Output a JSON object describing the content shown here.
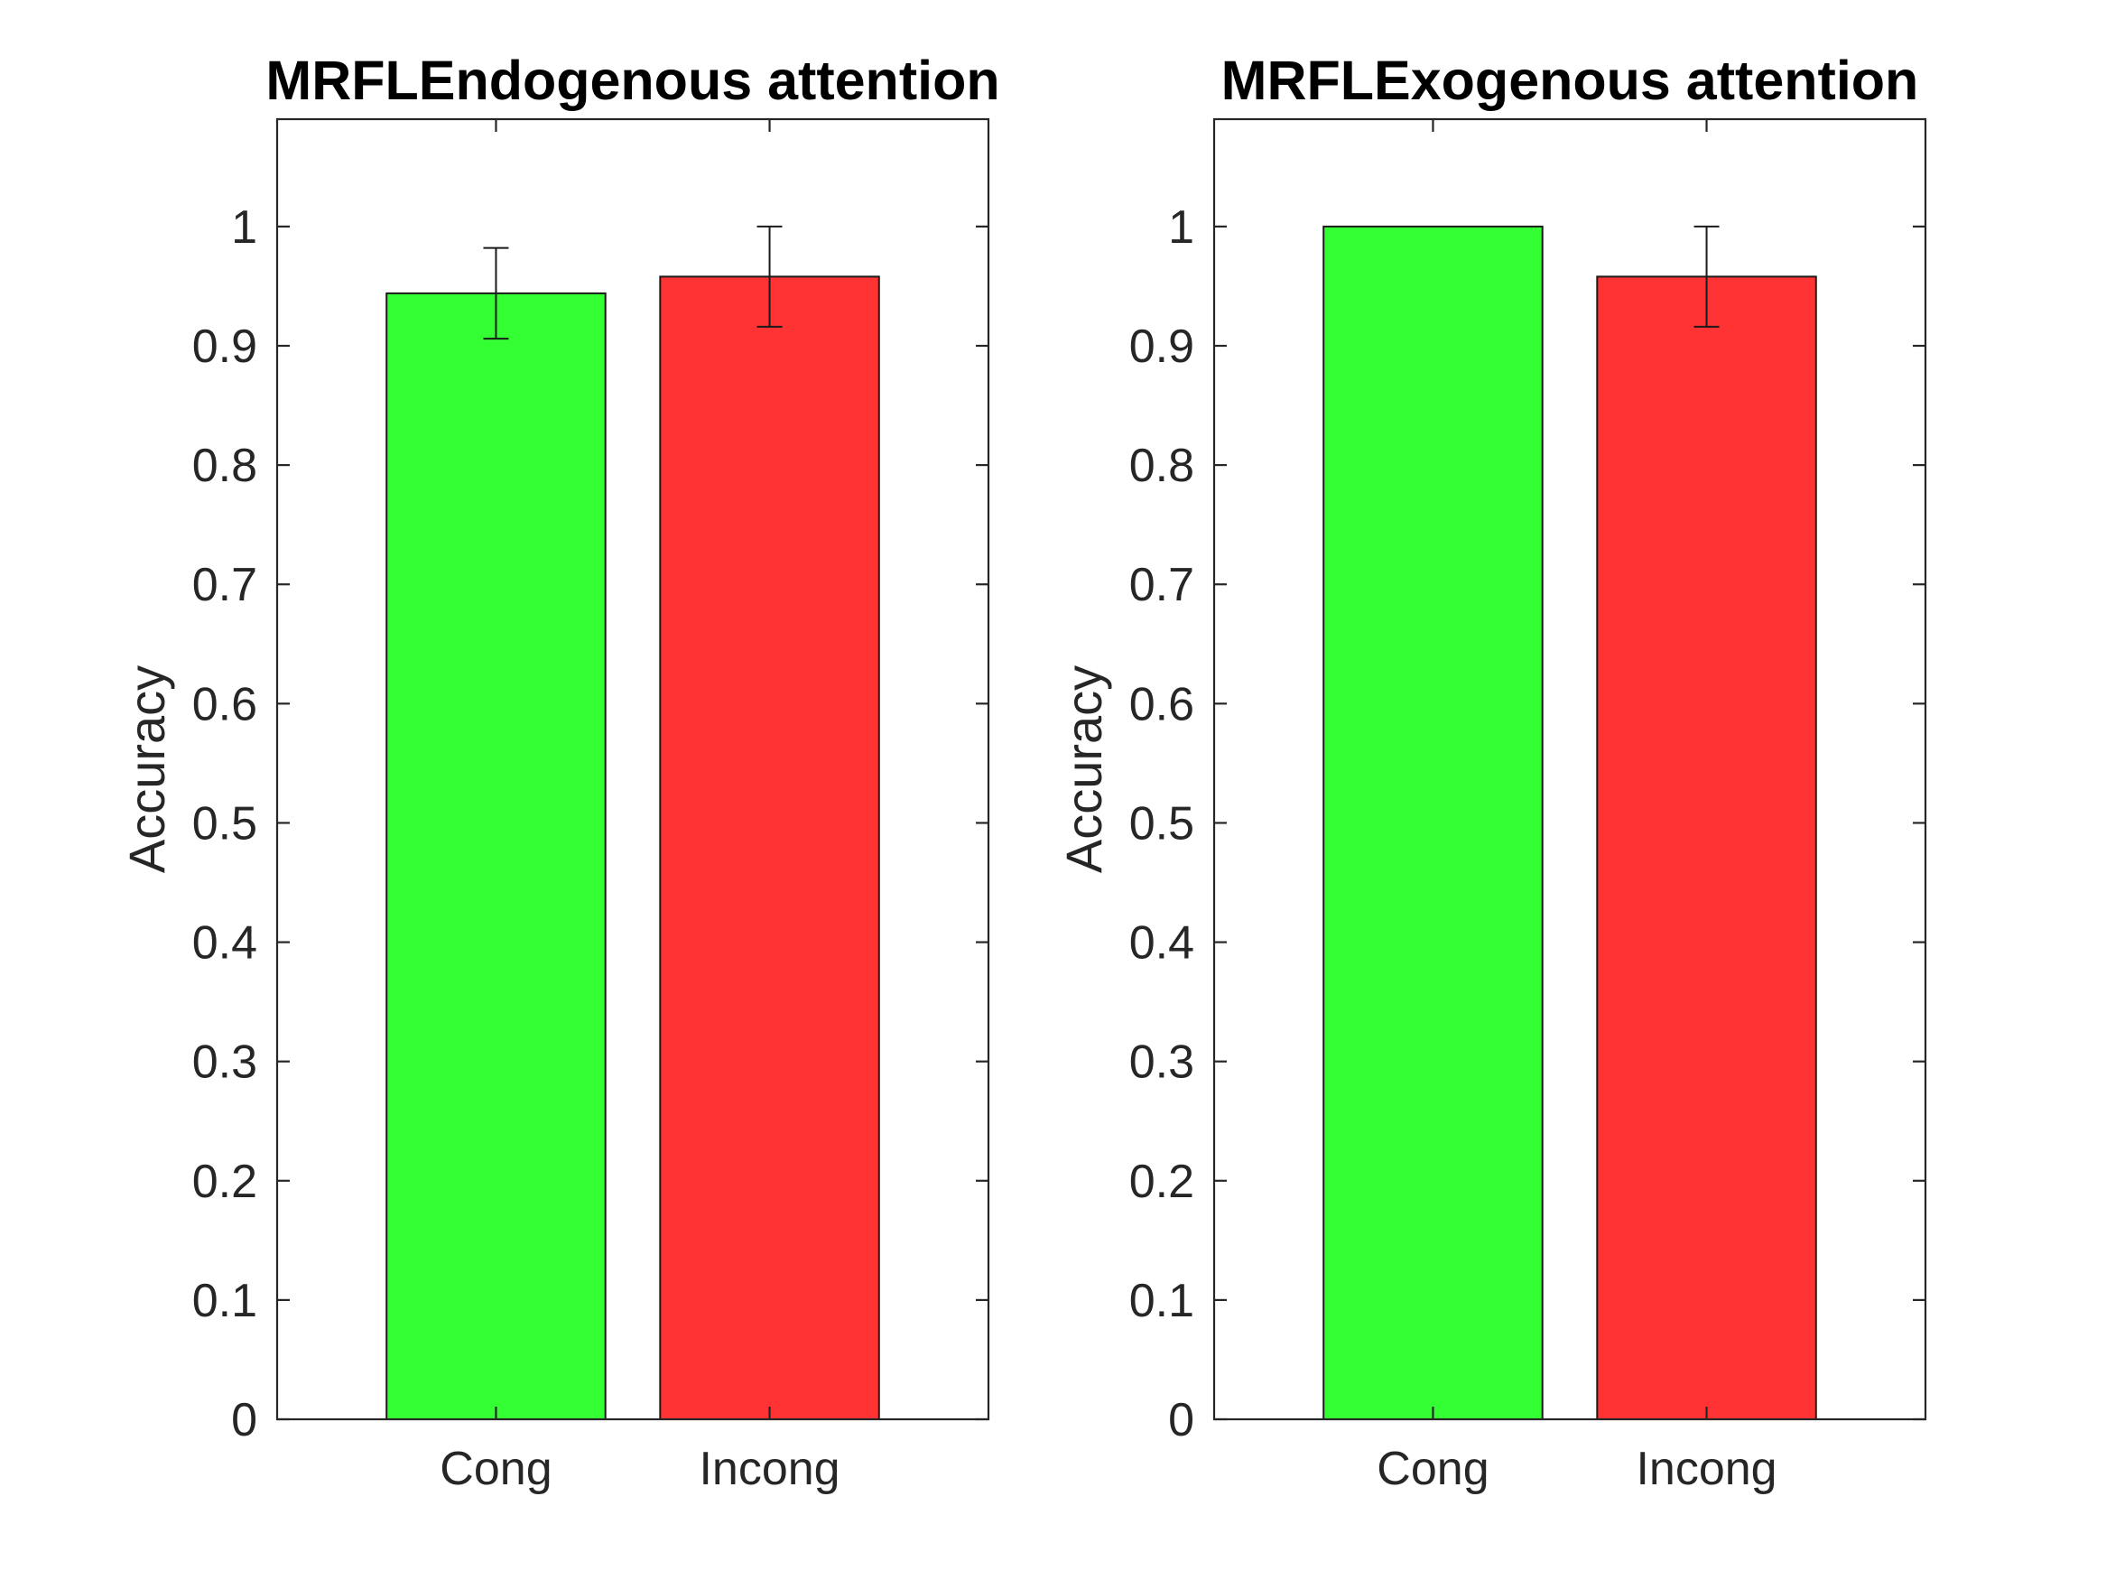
{
  "chart_data": [
    {
      "type": "bar",
      "title": "MRFLEndogenous attention",
      "ylabel": "Accuracy",
      "xlabel": "",
      "categories": [
        "Cong",
        "Incong"
      ],
      "values": [
        0.944,
        0.958
      ],
      "errors": [
        0.038,
        0.042
      ],
      "colors": [
        "#33ff33",
        "#ff3333"
      ],
      "ylim": [
        0,
        1.09
      ],
      "yticks": [
        0,
        0.1,
        0.2,
        0.3,
        0.4,
        0.5,
        0.6,
        0.7,
        0.8,
        0.9,
        1
      ],
      "ytick_labels": [
        "0",
        "0.1",
        "0.2",
        "0.3",
        "0.4",
        "0.5",
        "0.6",
        "0.7",
        "0.8",
        "0.9",
        "1"
      ],
      "grid": false
    },
    {
      "type": "bar",
      "title": "MRFLExogenous attention",
      "ylabel": "Accuracy",
      "xlabel": "",
      "categories": [
        "Cong",
        "Incong"
      ],
      "values": [
        1.0,
        0.958
      ],
      "errors": [
        0,
        0.042
      ],
      "colors": [
        "#33ff33",
        "#ff3333"
      ],
      "ylim": [
        0,
        1.09
      ],
      "yticks": [
        0,
        0.1,
        0.2,
        0.3,
        0.4,
        0.5,
        0.6,
        0.7,
        0.8,
        0.9,
        1
      ],
      "ytick_labels": [
        "0",
        "0.1",
        "0.2",
        "0.3",
        "0.4",
        "0.5",
        "0.6",
        "0.7",
        "0.8",
        "0.9",
        "1"
      ],
      "grid": false
    }
  ]
}
